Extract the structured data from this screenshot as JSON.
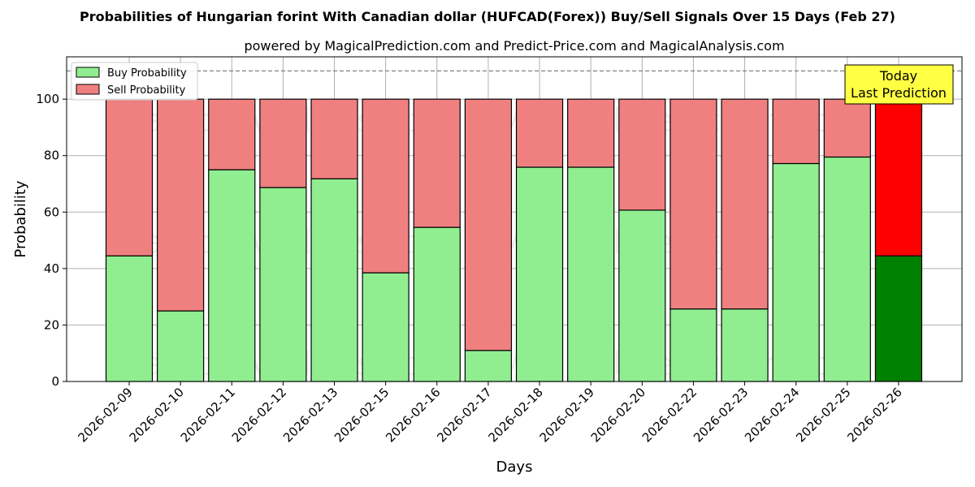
{
  "chart_data": {
    "type": "bar",
    "stacked": true,
    "title": "Probabilities of Hungarian forint With Canadian dollar (HUFCAD(Forex)) Buy/Sell Signals Over 15 Days (Feb 27)",
    "subtitle": "powered by MagicalPrediction.com and Predict-Price.com and MagicalAnalysis.com",
    "xlabel": "Days",
    "ylabel": "Probability",
    "ylim": [
      0,
      115
    ],
    "yticks": [
      0,
      20,
      40,
      60,
      80,
      100
    ],
    "grid": true,
    "legend_position": "top-left",
    "reference_line": 110,
    "categories": [
      "2026-02-09",
      "2026-02-10",
      "2026-02-11",
      "2026-02-12",
      "2026-02-13",
      "2026-02-15",
      "2026-02-16",
      "2026-02-17",
      "2026-02-18",
      "2026-02-19",
      "2026-02-20",
      "2026-02-22",
      "2026-02-23",
      "2026-02-24",
      "2026-02-25",
      "2026-02-26"
    ],
    "series": [
      {
        "name": "Buy Probability",
        "color": "#90ee90",
        "highlight_color": "#008000",
        "values": [
          44.5,
          25,
          75,
          68.7,
          71.8,
          38.5,
          54.6,
          11,
          75.9,
          75.9,
          60.7,
          25.7,
          25.7,
          77.2,
          79.5,
          44.5
        ]
      },
      {
        "name": "Sell Probability",
        "color": "#f08080",
        "highlight_color": "#ff0000",
        "values": [
          55.5,
          75,
          25,
          31.3,
          28.2,
          61.5,
          45.4,
          89,
          24.1,
          24.1,
          39.3,
          74.3,
          74.3,
          22.8,
          20.5,
          55.5
        ]
      }
    ],
    "highlight_index": 15,
    "annotation": {
      "line1": "Today",
      "line2": "Last Prediction",
      "color": "#ffff44"
    },
    "watermarks": [
      "MagicalAnalysis.com",
      "MagicalPrediction.com"
    ]
  }
}
